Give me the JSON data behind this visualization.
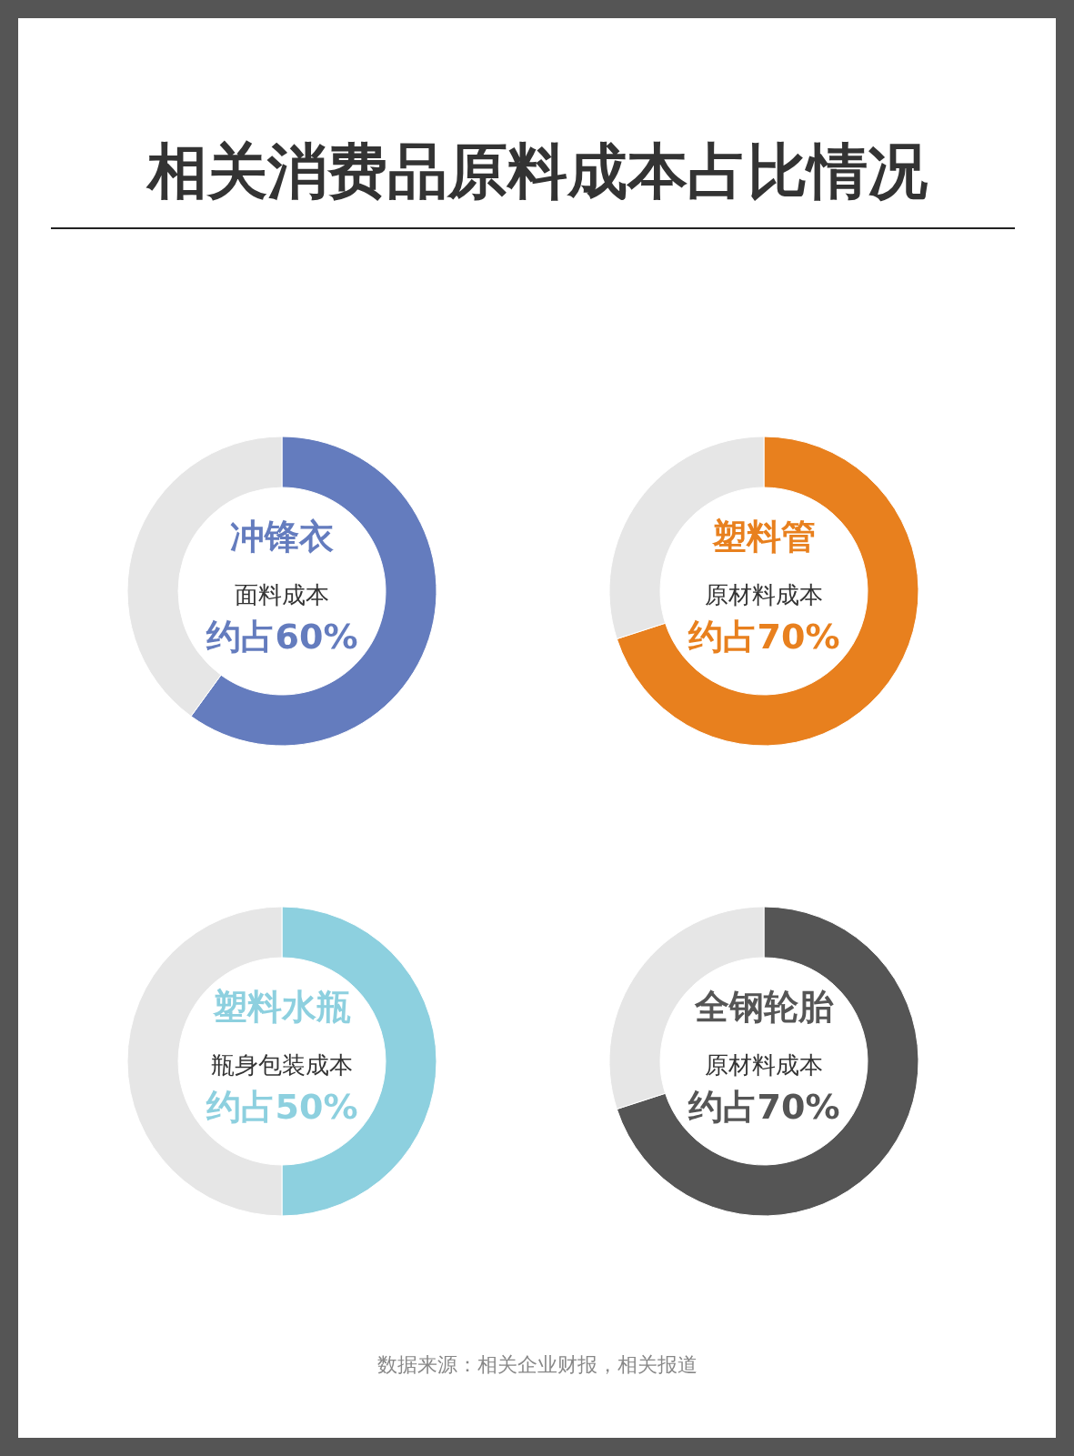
{
  "chart_data": [
    {
      "type": "other",
      "title": "相关消费品原料成本占比情况",
      "annotations": [
        "数据来源：相关企业财报，相关报道"
      ]
    },
    {
      "type": "donut",
      "title": "冲锋衣",
      "categories": [
        "面料成本",
        null
      ],
      "values": [
        60,
        40
      ],
      "colors": [
        "#647cbe",
        "#e6e6e6"
      ],
      "value_labels": [
        "约占60%",
        null
      ]
    },
    {
      "type": "donut",
      "title": "塑料管",
      "categories": [
        "原材料成本",
        null
      ],
      "values": [
        70,
        30
      ],
      "colors": [
        "#e8801e",
        "#e6e6e6"
      ],
      "value_labels": [
        "约占70%",
        null
      ]
    },
    {
      "type": "donut",
      "title": "塑料水瓶",
      "categories": [
        "瓶身包装成本",
        null
      ],
      "values": [
        50,
        50
      ],
      "colors": [
        "#8dd0df",
        "#e6e6e6"
      ],
      "value_labels": [
        "约占50%",
        null
      ]
    },
    {
      "type": "donut",
      "title": "全钢轮胎",
      "categories": [
        "原材料成本",
        null
      ],
      "values": [
        70,
        30
      ],
      "colors": [
        "#555555",
        "#e6e6e6"
      ],
      "value_labels": [
        "约占70%",
        null
      ]
    }
  ]
}
